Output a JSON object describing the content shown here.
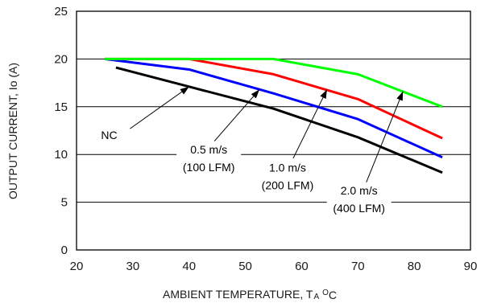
{
  "chart_data": {
    "type": "line",
    "title": "",
    "xlabel": "AMBIENT TEMPERATURE, T",
    "xlabel_sub": "A",
    "xlabel_unit": "OC",
    "ylabel": "OUTPUT CURRENT, Io  (A)",
    "xlim": [
      20,
      90
    ],
    "ylim": [
      0,
      25
    ],
    "x_ticks": [
      20,
      30,
      40,
      50,
      60,
      70,
      80,
      90
    ],
    "y_ticks": [
      0,
      5,
      10,
      15,
      20,
      25
    ],
    "grid": "horizontal",
    "series": [
      {
        "color": "#000000",
        "x": [
          27,
          40,
          55,
          70,
          85
        ],
        "y": [
          19.1,
          17.1,
          14.8,
          11.8,
          8.1
        ]
      },
      {
        "color": "#0000ff",
        "x": [
          25,
          40,
          55,
          70,
          85
        ],
        "y": [
          20.0,
          18.9,
          16.4,
          13.7,
          9.7
        ]
      },
      {
        "color": "#ff0000",
        "x": [
          25,
          40,
          55,
          70,
          85
        ],
        "y": [
          20.0,
          20.0,
          18.4,
          15.8,
          11.7
        ]
      },
      {
        "color": "#00ff00",
        "x": [
          25,
          40,
          55,
          70,
          85
        ],
        "y": [
          20.0,
          20.0,
          20.0,
          18.4,
          15.0
        ]
      }
    ],
    "annotations": [
      {
        "id": "nc",
        "lines": [
          "NC"
        ],
        "text_x": 25.8,
        "text_y": 11.6,
        "arrow_from": [
          29.5,
          12.7
        ],
        "arrow_to": [
          40,
          17.1
        ]
      },
      {
        "id": "v05",
        "lines": [
          "0.5 m/s",
          "(100 LFM)"
        ],
        "text_x": 43.5,
        "text_y": 10.1,
        "arrow_from": [
          44.5,
          11.4
        ],
        "arrow_to": [
          52.5,
          16.8
        ]
      },
      {
        "id": "v10",
        "lines": [
          "1.0 m/s",
          "(200 LFM)"
        ],
        "text_x": 57.5,
        "text_y": 8.2,
        "arrow_from": [
          58.5,
          9.6
        ],
        "arrow_to": [
          64.5,
          16.8
        ]
      },
      {
        "id": "v20",
        "lines": [
          "2.0 m/s",
          "(400 LFM)"
        ],
        "text_x": 70.2,
        "text_y": 5.8,
        "arrow_from": [
          71.5,
          7.1
        ],
        "arrow_to": [
          78,
          16.6
        ]
      }
    ]
  }
}
